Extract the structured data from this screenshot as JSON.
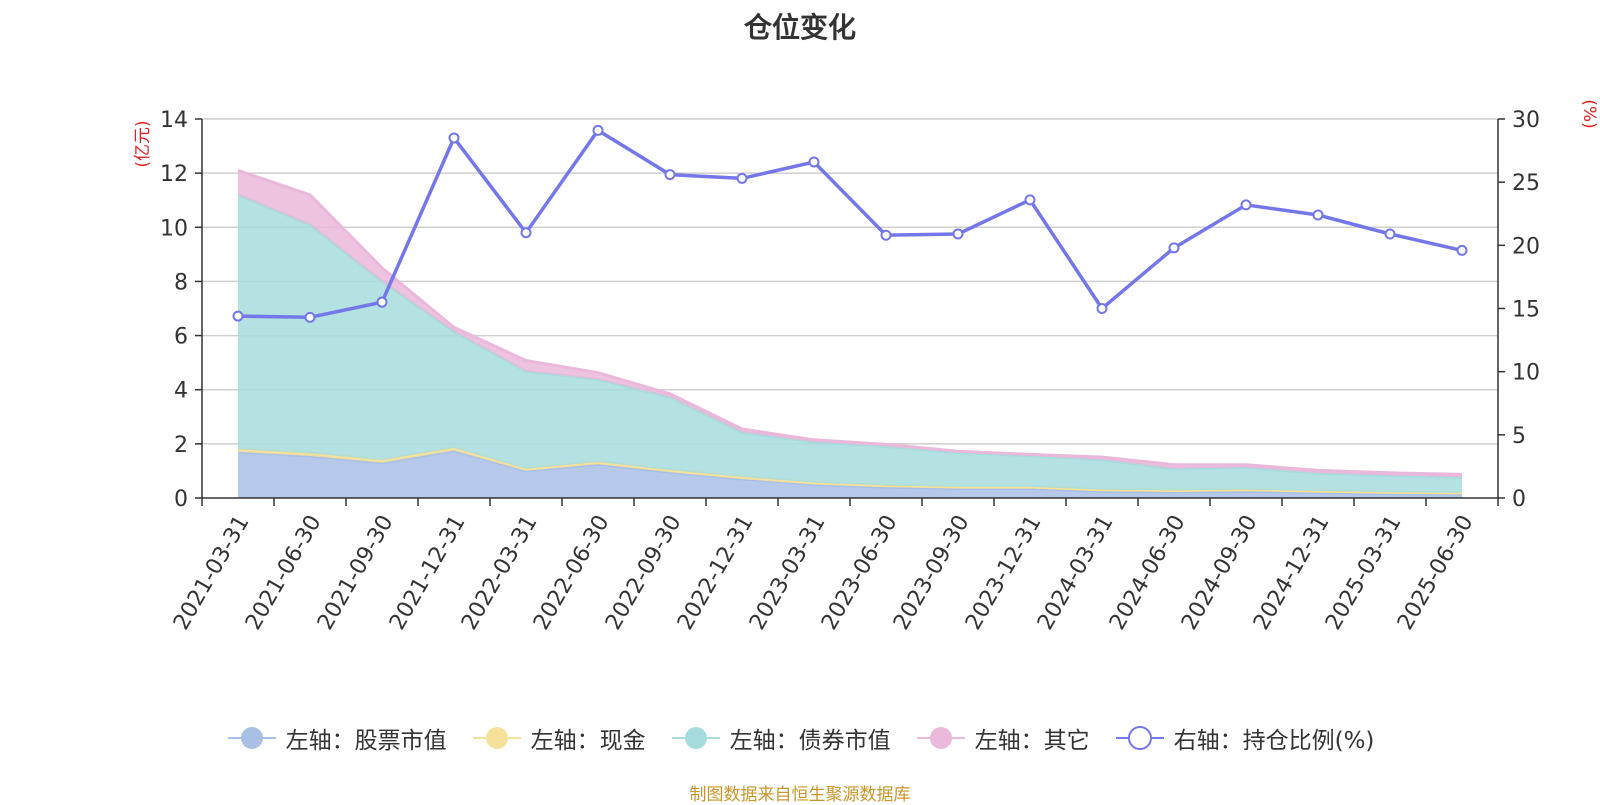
{
  "title": "仓位变化",
  "source_note": "制图数据来自恒生聚源数据库",
  "colors": {
    "stock": "#a9c0e6",
    "cash": "#f5e19a",
    "bond": "#a7dcdc",
    "other": "#eab8db",
    "ratio": "#7377e9",
    "axis_unit": "#e02020"
  },
  "chart_data": {
    "type": "area",
    "title": "仓位变化",
    "categories": [
      "2021-03-31",
      "2021-06-30",
      "2021-09-30",
      "2021-12-31",
      "2022-03-31",
      "2022-06-30",
      "2022-09-30",
      "2022-12-31",
      "2023-03-31",
      "2023-06-30",
      "2023-09-30",
      "2023-12-31",
      "2024-03-31",
      "2024-06-30",
      "2024-09-30",
      "2024-12-31",
      "2025-03-31",
      "2025-06-30"
    ],
    "left_axis": {
      "label": "(亿元)",
      "ylim": [
        0,
        14
      ],
      "ticks": [
        0,
        2,
        4,
        6,
        8,
        10,
        12,
        14
      ]
    },
    "right_axis": {
      "label": "(%)",
      "ylim": [
        0,
        30
      ],
      "ticks": [
        0,
        5,
        10,
        15,
        20,
        25,
        30
      ]
    },
    "stacked": true,
    "series": [
      {
        "name": "左轴：股票市值",
        "axis": "left",
        "type": "area",
        "values": [
          1.7,
          1.55,
          1.3,
          1.75,
          1.0,
          1.25,
          0.95,
          0.7,
          0.5,
          0.4,
          0.35,
          0.35,
          0.25,
          0.22,
          0.25,
          0.2,
          0.16,
          0.14
        ]
      },
      {
        "name": "左轴：现金",
        "axis": "left",
        "type": "area",
        "values": [
          0.1,
          0.1,
          0.1,
          0.1,
          0.08,
          0.08,
          0.08,
          0.08,
          0.07,
          0.06,
          0.06,
          0.06,
          0.06,
          0.06,
          0.06,
          0.06,
          0.05,
          0.05
        ]
      },
      {
        "name": "左轴：债券市值",
        "axis": "left",
        "type": "area",
        "values": [
          9.4,
          8.45,
          6.6,
          4.3,
          3.6,
          3.05,
          2.7,
          1.65,
          1.5,
          1.45,
          1.27,
          1.15,
          1.1,
          0.8,
          0.82,
          0.66,
          0.62,
          0.58
        ]
      },
      {
        "name": "左轴：其它",
        "axis": "left",
        "type": "area",
        "values": [
          0.9,
          1.1,
          0.5,
          0.15,
          0.4,
          0.25,
          0.12,
          0.12,
          0.08,
          0.07,
          0.05,
          0.05,
          0.1,
          0.15,
          0.1,
          0.1,
          0.1,
          0.1
        ]
      },
      {
        "name": "右轴：持仓比例(%)",
        "axis": "right",
        "type": "line",
        "values": [
          14.4,
          14.3,
          15.5,
          28.5,
          21.0,
          29.1,
          25.6,
          25.3,
          26.6,
          20.8,
          20.9,
          23.6,
          15.0,
          19.8,
          23.2,
          22.4,
          20.9,
          19.6
        ]
      }
    ],
    "legend": [
      "左轴：股票市值",
      "左轴：现金",
      "左轴：债券市值",
      "左轴：其它",
      "右轴：持仓比例(%)"
    ],
    "legend_position": "bottom",
    "grid": true
  }
}
